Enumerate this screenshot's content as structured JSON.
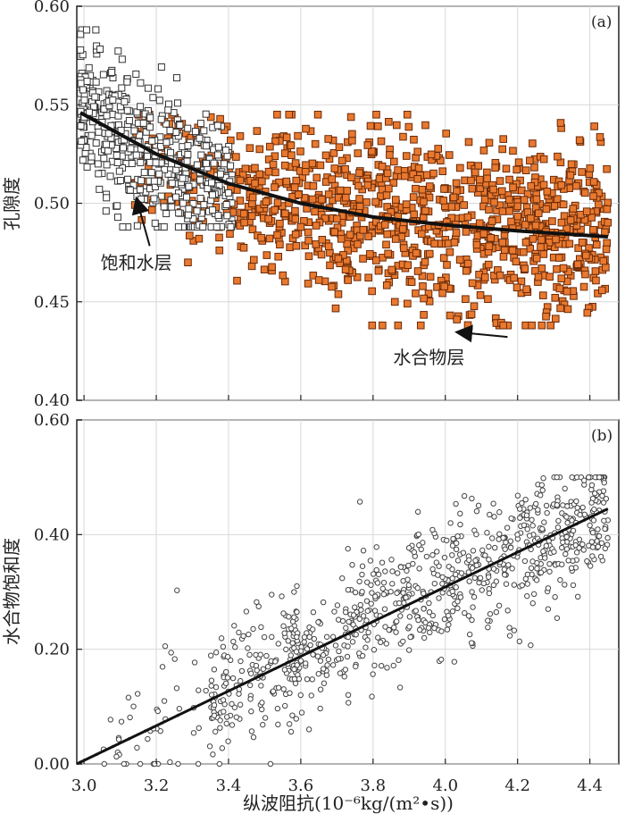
{
  "figure": {
    "x_axis_title": "纵波阻抗(10⁻⁶kg/(m²•s))"
  },
  "colors": {
    "axis": "#222222",
    "grid": "#d8d8d8",
    "water_marker_stroke": "#333333",
    "hydrate_marker_fill": "#e8792f",
    "hydrate_marker_stroke": "#6b2a08",
    "trend": "#111111",
    "scatter_b_stroke": "#444444",
    "scatter_b_low": "#5b9bd5"
  },
  "chart_data": [
    {
      "type": "scatter",
      "panel_label": "(a)",
      "ylabel": "孔隙度",
      "xlim": [
        2.98,
        4.48
      ],
      "ylim": [
        0.4,
        0.6
      ],
      "x_ticks": [
        "3.0",
        "3.2",
        "3.4",
        "3.6",
        "3.8",
        "4.0",
        "4.2",
        "4.4"
      ],
      "y_ticks": [
        "0.40",
        "0.45",
        "0.50",
        "0.55",
        "0.60"
      ],
      "annotations": [
        {
          "text": "饱和水层",
          "x": 3.12,
          "y": 0.472,
          "arrow_to": [
            3.15,
            0.502
          ]
        },
        {
          "text": "水合物层",
          "x": 3.93,
          "y": 0.424,
          "arrow_to": [
            4.05,
            0.437
          ]
        }
      ],
      "series": [
        {
          "name": "饱和水层",
          "marker": "open-square",
          "x_range": [
            2.99,
            3.4
          ],
          "y_center": 0.527,
          "y_spread": 0.02,
          "count": 460
        },
        {
          "name": "水合物层",
          "marker": "filled-square",
          "x_range": [
            3.14,
            4.45
          ],
          "y_center": 0.495,
          "y_spread": 0.022,
          "count": 1100
        }
      ],
      "trend_line": {
        "x": [
          2.99,
          3.2,
          3.4,
          3.6,
          3.8,
          4.0,
          4.2,
          4.45
        ],
        "y": [
          0.546,
          0.525,
          0.51,
          0.5,
          0.493,
          0.489,
          0.486,
          0.483
        ]
      }
    },
    {
      "type": "scatter",
      "panel_label": "(b)",
      "ylabel": "水合物饱和度",
      "xlim": [
        2.98,
        4.48
      ],
      "ylim": [
        0.0,
        0.6
      ],
      "x_ticks": [
        "3.0",
        "3.2",
        "3.4",
        "3.6",
        "3.8",
        "4.0",
        "4.2",
        "4.4"
      ],
      "y_ticks": [
        "0.00",
        "0.20",
        "0.40",
        "0.60"
      ],
      "series": [
        {
          "marker": "open-circle",
          "x_range": [
            3.05,
            4.45
          ],
          "count": 900
        }
      ],
      "trend_line": {
        "x": [
          2.98,
          4.45
        ],
        "y": [
          0.0,
          0.445
        ]
      }
    }
  ]
}
